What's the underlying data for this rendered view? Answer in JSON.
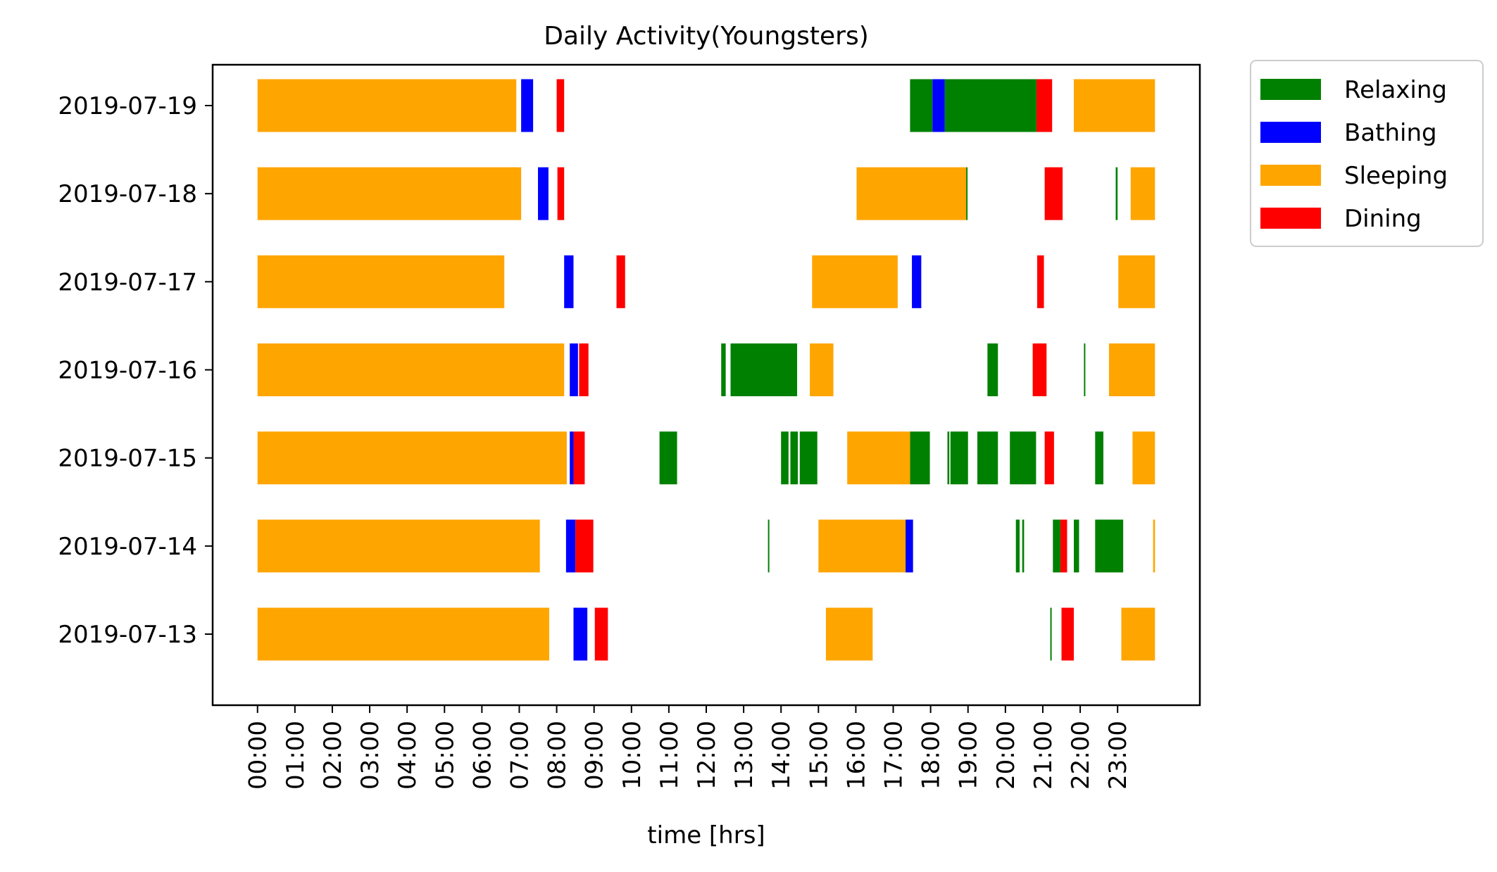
{
  "chart_data": {
    "type": "bar",
    "orientation": "horizontal-broken-bars",
    "title": "Daily Activity(Youngsters)",
    "xlabel": "time [hrs]",
    "ylabel": "",
    "x_unit": "hours since midnight",
    "xlim": [
      -1.2,
      25.2
    ],
    "x_tick_labels": [
      "00:00",
      "01:00",
      "02:00",
      "03:00",
      "04:00",
      "05:00",
      "06:00",
      "07:00",
      "08:00",
      "09:00",
      "10:00",
      "11:00",
      "12:00",
      "13:00",
      "14:00",
      "15:00",
      "16:00",
      "17:00",
      "18:00",
      "19:00",
      "20:00",
      "21:00",
      "22:00",
      "23:00"
    ],
    "categories": [
      "2019-07-13",
      "2019-07-14",
      "2019-07-15",
      "2019-07-16",
      "2019-07-17",
      "2019-07-18",
      "2019-07-19"
    ],
    "grid": false,
    "legend_position": "outside-top-right",
    "series": [
      {
        "name": "Relaxing",
        "color": "#008000",
        "segments": [
          {
            "day": "2019-07-14",
            "start": 13.65,
            "end": 13.68
          },
          {
            "day": "2019-07-14",
            "start": 20.28,
            "end": 20.38
          },
          {
            "day": "2019-07-14",
            "start": 20.45,
            "end": 20.5
          },
          {
            "day": "2019-07-14",
            "start": 21.27,
            "end": 21.47
          },
          {
            "day": "2019-07-14",
            "start": 21.83,
            "end": 21.97
          },
          {
            "day": "2019-07-14",
            "start": 22.4,
            "end": 23.15
          },
          {
            "day": "2019-07-13",
            "start": 21.2,
            "end": 21.23
          },
          {
            "day": "2019-07-15",
            "start": 10.75,
            "end": 11.22
          },
          {
            "day": "2019-07-15",
            "start": 14.0,
            "end": 14.2
          },
          {
            "day": "2019-07-15",
            "start": 14.25,
            "end": 14.45
          },
          {
            "day": "2019-07-15",
            "start": 14.5,
            "end": 14.97
          },
          {
            "day": "2019-07-15",
            "start": 17.45,
            "end": 17.98
          },
          {
            "day": "2019-07-15",
            "start": 18.45,
            "end": 18.5
          },
          {
            "day": "2019-07-15",
            "start": 18.53,
            "end": 19.0
          },
          {
            "day": "2019-07-15",
            "start": 19.25,
            "end": 19.8
          },
          {
            "day": "2019-07-15",
            "start": 20.12,
            "end": 20.82
          },
          {
            "day": "2019-07-15",
            "start": 22.4,
            "end": 22.62
          },
          {
            "day": "2019-07-16",
            "start": 12.4,
            "end": 12.52
          },
          {
            "day": "2019-07-16",
            "start": 12.65,
            "end": 14.43
          },
          {
            "day": "2019-07-16",
            "start": 19.52,
            "end": 19.8
          },
          {
            "day": "2019-07-16",
            "start": 22.1,
            "end": 22.13
          },
          {
            "day": "2019-07-18",
            "start": 18.95,
            "end": 18.98
          },
          {
            "day": "2019-07-18",
            "start": 22.95,
            "end": 23.0
          },
          {
            "day": "2019-07-19",
            "start": 17.45,
            "end": 18.05
          }
        ]
      },
      {
        "name": "Bathing",
        "color": "#0000ff",
        "segments": [
          {
            "day": "2019-07-13",
            "start": 8.45,
            "end": 8.82
          },
          {
            "day": "2019-07-14",
            "start": 8.25,
            "end": 8.5
          },
          {
            "day": "2019-07-15",
            "start": 8.35,
            "end": 8.45
          },
          {
            "day": "2019-07-16",
            "start": 8.35,
            "end": 8.57
          },
          {
            "day": "2019-07-17",
            "start": 8.2,
            "end": 8.45
          },
          {
            "day": "2019-07-17",
            "start": 17.5,
            "end": 17.75
          },
          {
            "day": "2019-07-18",
            "start": 7.5,
            "end": 7.78
          },
          {
            "day": "2019-07-19",
            "start": 7.05,
            "end": 7.37
          },
          {
            "day": "2019-07-19",
            "start": 18.05,
            "end": 18.38
          },
          {
            "day": "2019-07-14",
            "start": 17.33,
            "end": 17.53
          }
        ]
      },
      {
        "name": "Sleeping",
        "color": "#ffa500",
        "segments": [
          {
            "day": "2019-07-13",
            "start": 0.0,
            "end": 7.8
          },
          {
            "day": "2019-07-13",
            "start": 15.2,
            "end": 16.45
          },
          {
            "day": "2019-07-13",
            "start": 23.1,
            "end": 24.0
          },
          {
            "day": "2019-07-14",
            "start": 0.0,
            "end": 7.55
          },
          {
            "day": "2019-07-14",
            "start": 15.0,
            "end": 17.33
          },
          {
            "day": "2019-07-14",
            "start": 23.95,
            "end": 24.0
          },
          {
            "day": "2019-07-15",
            "start": 0.0,
            "end": 8.27
          },
          {
            "day": "2019-07-15",
            "start": 15.77,
            "end": 17.45
          },
          {
            "day": "2019-07-15",
            "start": 23.4,
            "end": 24.0
          },
          {
            "day": "2019-07-16",
            "start": 0.0,
            "end": 8.2
          },
          {
            "day": "2019-07-16",
            "start": 14.77,
            "end": 15.4
          },
          {
            "day": "2019-07-16",
            "start": 22.77,
            "end": 24.0
          },
          {
            "day": "2019-07-17",
            "start": 0.0,
            "end": 6.6
          },
          {
            "day": "2019-07-17",
            "start": 14.83,
            "end": 17.12
          },
          {
            "day": "2019-07-17",
            "start": 23.02,
            "end": 24.0
          },
          {
            "day": "2019-07-18",
            "start": 0.0,
            "end": 7.05
          },
          {
            "day": "2019-07-18",
            "start": 16.02,
            "end": 18.95
          },
          {
            "day": "2019-07-18",
            "start": 23.35,
            "end": 24.0
          },
          {
            "day": "2019-07-19",
            "start": 0.0,
            "end": 6.92
          },
          {
            "day": "2019-07-19",
            "start": 21.83,
            "end": 24.0
          }
        ]
      },
      {
        "name": "Dining",
        "color": "#ff0000",
        "segments": [
          {
            "day": "2019-07-13",
            "start": 9.02,
            "end": 9.37
          },
          {
            "day": "2019-07-13",
            "start": 21.5,
            "end": 21.83
          },
          {
            "day": "2019-07-14",
            "start": 8.5,
            "end": 8.98
          },
          {
            "day": "2019-07-14",
            "start": 21.47,
            "end": 21.65
          },
          {
            "day": "2019-07-15",
            "start": 8.45,
            "end": 8.75
          },
          {
            "day": "2019-07-15",
            "start": 21.05,
            "end": 21.3
          },
          {
            "day": "2019-07-16",
            "start": 8.6,
            "end": 8.85
          },
          {
            "day": "2019-07-16",
            "start": 20.73,
            "end": 21.1
          },
          {
            "day": "2019-07-17",
            "start": 9.6,
            "end": 9.83
          },
          {
            "day": "2019-07-17",
            "start": 20.85,
            "end": 21.03
          },
          {
            "day": "2019-07-18",
            "start": 8.02,
            "end": 8.2
          },
          {
            "day": "2019-07-18",
            "start": 21.05,
            "end": 21.53
          },
          {
            "day": "2019-07-19",
            "start": 8.0,
            "end": 8.2
          },
          {
            "day": "2019-07-19",
            "start": 20.83,
            "end": 21.25
          }
        ]
      },
      {
        "name": "Relaxing",
        "color": "#008000",
        "segments": [
          {
            "day": "2019-07-19",
            "start": 18.38,
            "end": 20.83
          }
        ]
      }
    ]
  }
}
